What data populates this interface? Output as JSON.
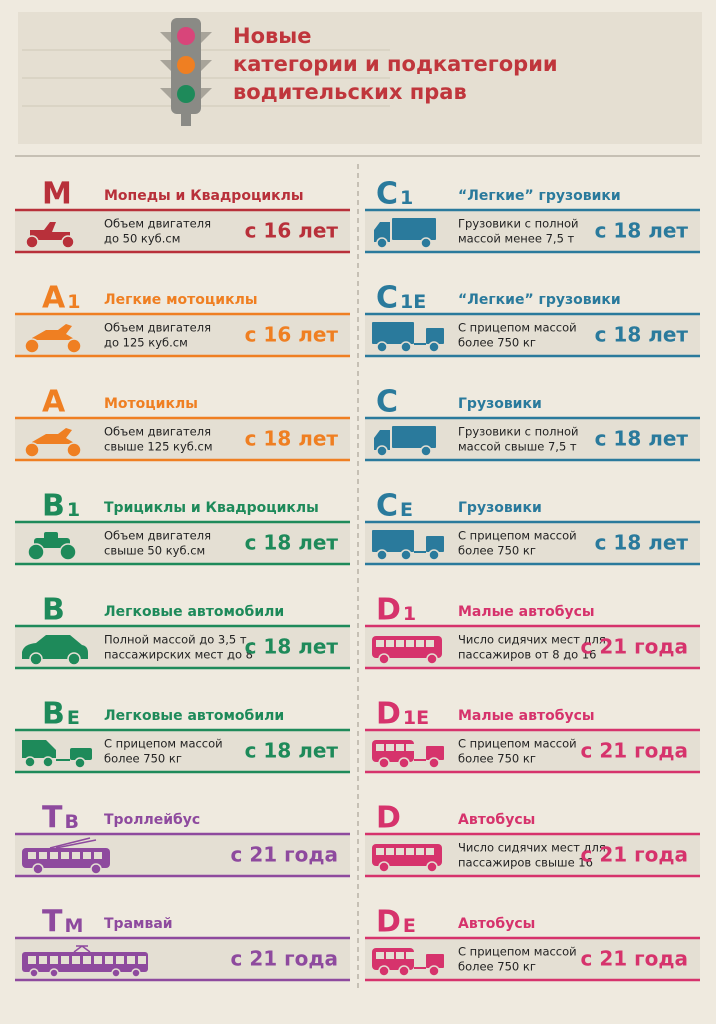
{
  "header": {
    "title": [
      "Новые",
      "категории и подкатегории",
      "водительских прав"
    ]
  },
  "left": [
    {
      "code": "M",
      "sub": "",
      "name": "Мопеды и Квадроциклы",
      "desc": [
        "Объем двигателя",
        "до 50 куб.см"
      ],
      "age": "с 16 лет"
    },
    {
      "code": "A",
      "sub": "1",
      "name": "Легкие мотоциклы",
      "desc": [
        "Объем двигателя",
        "до 125 куб.см"
      ],
      "age": "с 16 лет"
    },
    {
      "code": "A",
      "sub": "",
      "name": "Мотоциклы",
      "desc": [
        "Объем двигателя",
        "свыше 125 куб.см"
      ],
      "age": "с 18 лет"
    },
    {
      "code": "B",
      "sub": "1",
      "name": "Трициклы и Квадроциклы",
      "desc": [
        "Объем двигателя",
        "свыше 50 куб.см"
      ],
      "age": "с 18 лет"
    },
    {
      "code": "B",
      "sub": "",
      "name": "Легковые автомобили",
      "desc": [
        "Полной массой до 3,5 т ,",
        "пассажирских мест до 8"
      ],
      "age": "с 18 лет"
    },
    {
      "code": "B",
      "sub": "E",
      "name": "Легковые автомобили",
      "desc": [
        "С прицепом массой",
        "более 750 кг"
      ],
      "age": "с 18 лет"
    },
    {
      "code": "T",
      "sub": "В",
      "name": "Троллейбус",
      "desc": [],
      "age": "с 21 года"
    },
    {
      "code": "T",
      "sub": "М",
      "name": "Трамвай",
      "desc": [],
      "age": "с 21 года"
    }
  ],
  "right": [
    {
      "code": "C",
      "sub": "1",
      "name": "“Легкие” грузовики",
      "desc": [
        "Грузовики с полной",
        "массой менее 7,5 т"
      ],
      "age": "с 18 лет"
    },
    {
      "code": "C",
      "sub": "1E",
      "name": "“Легкие” грузовики",
      "desc": [
        "С прицепом массой",
        "более 750 кг"
      ],
      "age": "с 18 лет"
    },
    {
      "code": "C",
      "sub": "",
      "name": "Грузовики",
      "desc": [
        "Грузовики с полной",
        "массой свыше 7,5 т"
      ],
      "age": "с 18 лет"
    },
    {
      "code": "C",
      "sub": "E",
      "name": "Грузовики",
      "desc": [
        "С прицепом массой",
        "более 750 кг"
      ],
      "age": "с 18 лет"
    },
    {
      "code": "D",
      "sub": "1",
      "name": "Малые автобусы",
      "desc": [
        "Число сидячих мест для",
        "пассажиров от 8 до 16"
      ],
      "age": "с 21 года"
    },
    {
      "code": "D",
      "sub": "1E",
      "name": "Малые автобусы",
      "desc": [
        "С прицепом массой",
        "более 750 кг"
      ],
      "age": "с 21 года"
    },
    {
      "code": "D",
      "sub": "",
      "name": "Автобусы",
      "desc": [
        "Число сидячих мест для",
        "пассажиров свыше 16"
      ],
      "age": "с 21 года"
    },
    {
      "code": "D",
      "sub": "E",
      "name": "Автобусы",
      "desc": [
        "С прицепом массой",
        "более 750 кг"
      ],
      "age": "с 21 года"
    }
  ]
}
